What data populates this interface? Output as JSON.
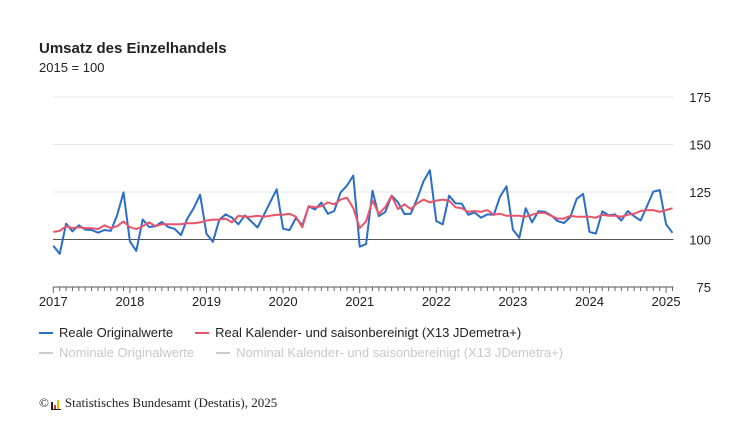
{
  "chart_data": {
    "type": "line",
    "title": "Umsatz des Einzelhandels",
    "subtitle": "2015 = 100",
    "ylim": [
      75,
      175
    ],
    "yticks": [
      75,
      100,
      125,
      150,
      175
    ],
    "xticks": [
      "2017",
      "2018",
      "2019",
      "2020",
      "2021",
      "2022",
      "2023",
      "2024",
      "2025"
    ],
    "reference_line": 100,
    "grid": true,
    "legend_placement": "bottom",
    "x": [
      "2017-01",
      "2017-02",
      "2017-03",
      "2017-04",
      "2017-05",
      "2017-06",
      "2017-07",
      "2017-08",
      "2017-09",
      "2017-10",
      "2017-11",
      "2017-12",
      "2018-01",
      "2018-02",
      "2018-03",
      "2018-04",
      "2018-05",
      "2018-06",
      "2018-07",
      "2018-08",
      "2018-09",
      "2018-10",
      "2018-11",
      "2018-12",
      "2019-01",
      "2019-02",
      "2019-03",
      "2019-04",
      "2019-05",
      "2019-06",
      "2019-07",
      "2019-08",
      "2019-09",
      "2019-10",
      "2019-11",
      "2019-12",
      "2020-01",
      "2020-02",
      "2020-03",
      "2020-04",
      "2020-05",
      "2020-06",
      "2020-07",
      "2020-08",
      "2020-09",
      "2020-10",
      "2020-11",
      "2020-12",
      "2021-01",
      "2021-02",
      "2021-03",
      "2021-04",
      "2021-05",
      "2021-06",
      "2021-07",
      "2021-08",
      "2021-09",
      "2021-10",
      "2021-11",
      "2021-12",
      "2022-01",
      "2022-02",
      "2022-03",
      "2022-04",
      "2022-05",
      "2022-06",
      "2022-07",
      "2022-08",
      "2022-09",
      "2022-10",
      "2022-11",
      "2022-12",
      "2023-01",
      "2023-02",
      "2023-03",
      "2023-04",
      "2023-05",
      "2023-06",
      "2023-07",
      "2023-08",
      "2023-09",
      "2023-10",
      "2023-11",
      "2023-12",
      "2024-01",
      "2024-02",
      "2024-03",
      "2024-04",
      "2024-05",
      "2024-06",
      "2024-07",
      "2024-08",
      "2024-09",
      "2024-10",
      "2024-11",
      "2024-12",
      "2025-01",
      "2025-02"
    ],
    "series": [
      {
        "name": "Reale Originalwerte",
        "color": "#2a6ec6",
        "active": true,
        "values": [
          96.7,
          92.4,
          108.3,
          104.3,
          107.5,
          105.2,
          105,
          103.6,
          105,
          104.5,
          112.7,
          124.8,
          99,
          94,
          110.6,
          106.6,
          107,
          109.2,
          106.6,
          105.6,
          102.3,
          111,
          116.5,
          123.6,
          103,
          98.8,
          110.4,
          113.2,
          111.5,
          108,
          112.7,
          109.5,
          106.3,
          113,
          119.8,
          126.4,
          105.7,
          104.9,
          111.3,
          107.5,
          117.4,
          115.8,
          119.4,
          113.5,
          115,
          124.8,
          128.3,
          133.7,
          96.2,
          97.6,
          125.7,
          112.3,
          114.4,
          123.1,
          119.6,
          113.4,
          113.5,
          121.4,
          130.6,
          136.5,
          109.7,
          108,
          123.1,
          119.1,
          118.8,
          113,
          114.2,
          111.5,
          113.2,
          113,
          122.6,
          128,
          105.2,
          100.9,
          116.5,
          109,
          114.9,
          114.6,
          112.7,
          109.7,
          108.7,
          111.8,
          121.4,
          124,
          104,
          103.1,
          114.8,
          112.7,
          113.2,
          110,
          115,
          112.2,
          110,
          117.4,
          125.2,
          126,
          108,
          103.5
        ]
      },
      {
        "name": "Real Kalender- und saisonbereinigt (X13 JDemetra+)",
        "color": "#e8556a",
        "active": true,
        "values": [
          104,
          104.5,
          107,
          106,
          106.5,
          106,
          106,
          105.5,
          107.5,
          106,
          107,
          109.5,
          106.5,
          105.5,
          107,
          109,
          107,
          108,
          108,
          108,
          108,
          108.5,
          108.5,
          109,
          110,
          110.5,
          110.5,
          111,
          109,
          112.5,
          112,
          112,
          112.5,
          112,
          112.5,
          113,
          113,
          113.5,
          112,
          106.5,
          117.5,
          117,
          117.5,
          119.5,
          118.5,
          121,
          122,
          116.5,
          106,
          109.5,
          120.5,
          113.5,
          117,
          123,
          116,
          118.5,
          116,
          119,
          121,
          119.5,
          120.5,
          121,
          120.5,
          117,
          116.5,
          114.5,
          115,
          114.5,
          115.5,
          113,
          113.5,
          112.5,
          112.5,
          112.5,
          112,
          113,
          114,
          114,
          112.5,
          111,
          111,
          112.5,
          112,
          112,
          112,
          111.5,
          113,
          112.5,
          112.5,
          112,
          113,
          113.5,
          115,
          115.5,
          115.5,
          114.5,
          115.5,
          116.5
        ]
      },
      {
        "name": "Nominale Originalwerte",
        "color": "#cccccc",
        "active": false
      },
      {
        "name": "Nominal Kalender- und saisonbereinigt (X13 JDemetra+)",
        "color": "#cccccc",
        "active": false
      }
    ]
  },
  "footer": {
    "copyright": "©",
    "source": "Statistisches Bundesamt (Destatis), 2025"
  }
}
